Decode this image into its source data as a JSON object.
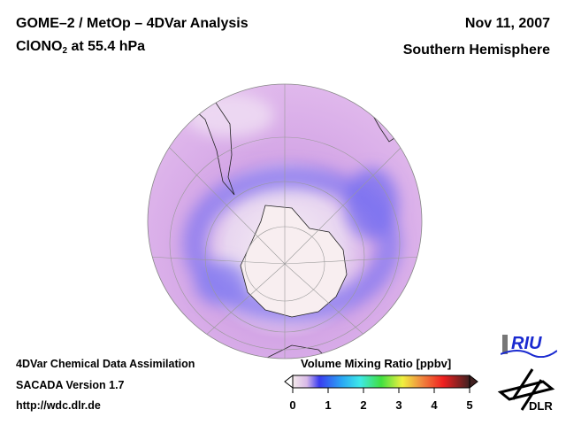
{
  "header": {
    "title_line1": "GOME–2 / MetOp – 4DVar Analysis",
    "species": "ClONO",
    "species_subscript": "2",
    "level": " at 55.4 hPa",
    "date": "Nov 11, 2007",
    "hemisphere": "Southern Hemisphere"
  },
  "footer": {
    "line1": "4DVar Chemical Data Assimilation",
    "line2": "SACADA Version 1.7",
    "line3": "http://wdc.dlr.de"
  },
  "colorbar": {
    "title": "Volume Mixing Ratio [ppbv]",
    "ticks": [
      "0",
      "1",
      "2",
      "3",
      "4",
      "5"
    ],
    "range": [
      0,
      5
    ],
    "colors": [
      "#f4eaea",
      "#d8b8e8",
      "#3a3cf0",
      "#2aa8f4",
      "#3ee8e8",
      "#40e040",
      "#f0f040",
      "#f09040",
      "#f02020",
      "#701818",
      "#402020"
    ]
  },
  "logos": {
    "riu": "RIU",
    "dlr": "DLR"
  }
}
